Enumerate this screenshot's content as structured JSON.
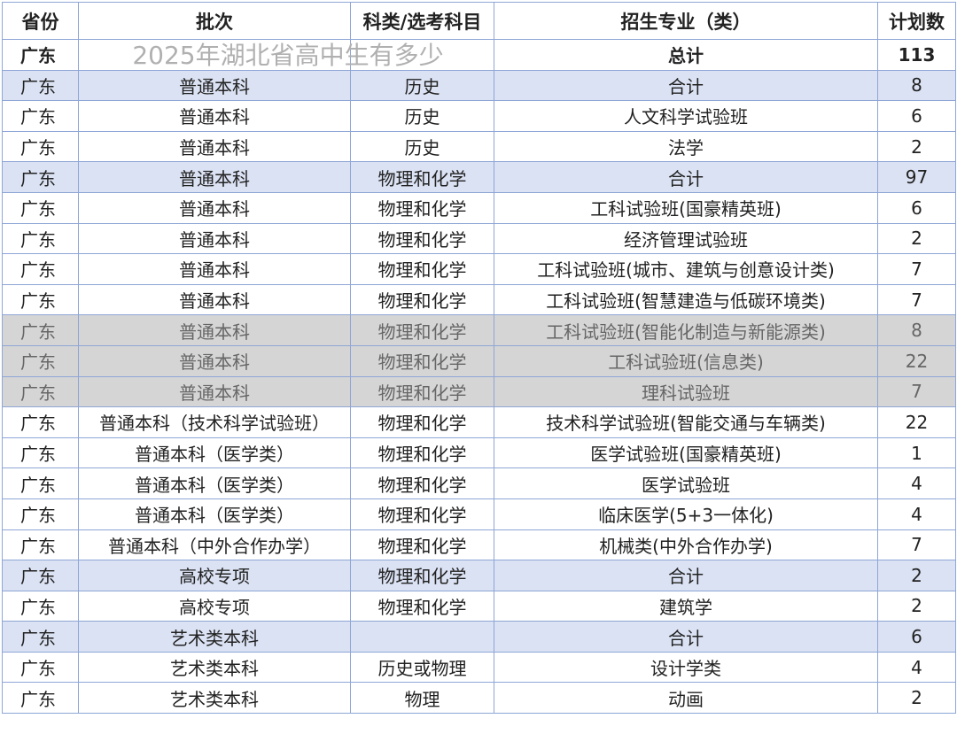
{
  "headers": [
    "省份",
    "批次",
    "科类/选考科目",
    "招生专业（类）",
    "计划数"
  ],
  "rows": [
    {
      "type": "total",
      "cells": [
        "广东",
        "",
        "",
        "总计",
        "113"
      ]
    },
    {
      "type": "sub",
      "cells": [
        "广东",
        "普通本科",
        "历史",
        "合计",
        "8"
      ]
    },
    {
      "type": "",
      "cells": [
        "广东",
        "普通本科",
        "历史",
        "人文科学试验班",
        "6"
      ]
    },
    {
      "type": "",
      "cells": [
        "广东",
        "普通本科",
        "历史",
        "法学",
        "2"
      ]
    },
    {
      "type": "sub",
      "cells": [
        "广东",
        "普通本科",
        "物理和化学",
        "合计",
        "97"
      ]
    },
    {
      "type": "",
      "cells": [
        "广东",
        "普通本科",
        "物理和化学",
        "工科试验班(国豪精英班)",
        "6"
      ]
    },
    {
      "type": "",
      "cells": [
        "广东",
        "普通本科",
        "物理和化学",
        "经济管理试验班",
        "2"
      ]
    },
    {
      "type": "",
      "cells": [
        "广东",
        "普通本科",
        "物理和化学",
        "工科试验班(城市、建筑与创意设计类)",
        "7"
      ]
    },
    {
      "type": "",
      "cells": [
        "广东",
        "普通本科",
        "物理和化学",
        "工科试验班(智慧建造与低碳环境类)",
        "7"
      ]
    },
    {
      "type": "dim",
      "cells": [
        "广东",
        "普通本科",
        "物理和化学",
        "工科试验班(智能化制造与新能源类)",
        "8"
      ]
    },
    {
      "type": "dim",
      "cells": [
        "广东",
        "普通本科",
        "物理和化学",
        "工科试验班(信息类)",
        "22"
      ]
    },
    {
      "type": "dim",
      "cells": [
        "广东",
        "普通本科",
        "物理和化学",
        "理科试验班",
        "7"
      ]
    },
    {
      "type": "",
      "cells": [
        "广东",
        "普通本科（技术科学试验班）",
        "物理和化学",
        "技术科学试验班(智能交通与车辆类)",
        "22"
      ]
    },
    {
      "type": "",
      "cells": [
        "广东",
        "普通本科（医学类）",
        "物理和化学",
        "医学试验班(国豪精英班)",
        "1"
      ]
    },
    {
      "type": "",
      "cells": [
        "广东",
        "普通本科（医学类）",
        "物理和化学",
        "医学试验班",
        "4"
      ]
    },
    {
      "type": "",
      "cells": [
        "广东",
        "普通本科（医学类）",
        "物理和化学",
        "临床医学(5+3一体化)",
        "4"
      ]
    },
    {
      "type": "",
      "cells": [
        "广东",
        "普通本科（中外合作办学）",
        "物理和化学",
        "机械类(中外合作办学)",
        "7"
      ]
    },
    {
      "type": "sub",
      "cells": [
        "广东",
        "高校专项",
        "物理和化学",
        "合计",
        "2"
      ]
    },
    {
      "type": "",
      "cells": [
        "广东",
        "高校专项",
        "物理和化学",
        "建筑学",
        "2"
      ]
    },
    {
      "type": "sub",
      "cells": [
        "广东",
        "艺术类本科",
        "",
        "合计",
        "6"
      ]
    },
    {
      "type": "",
      "cells": [
        "广东",
        "艺术类本科",
        "历史或物理",
        "设计学类",
        "4"
      ]
    },
    {
      "type": "",
      "cells": [
        "广东",
        "艺术类本科",
        "物理",
        "动画",
        "2"
      ]
    }
  ],
  "overlay_text": "2025年湖北省高中生有多少"
}
